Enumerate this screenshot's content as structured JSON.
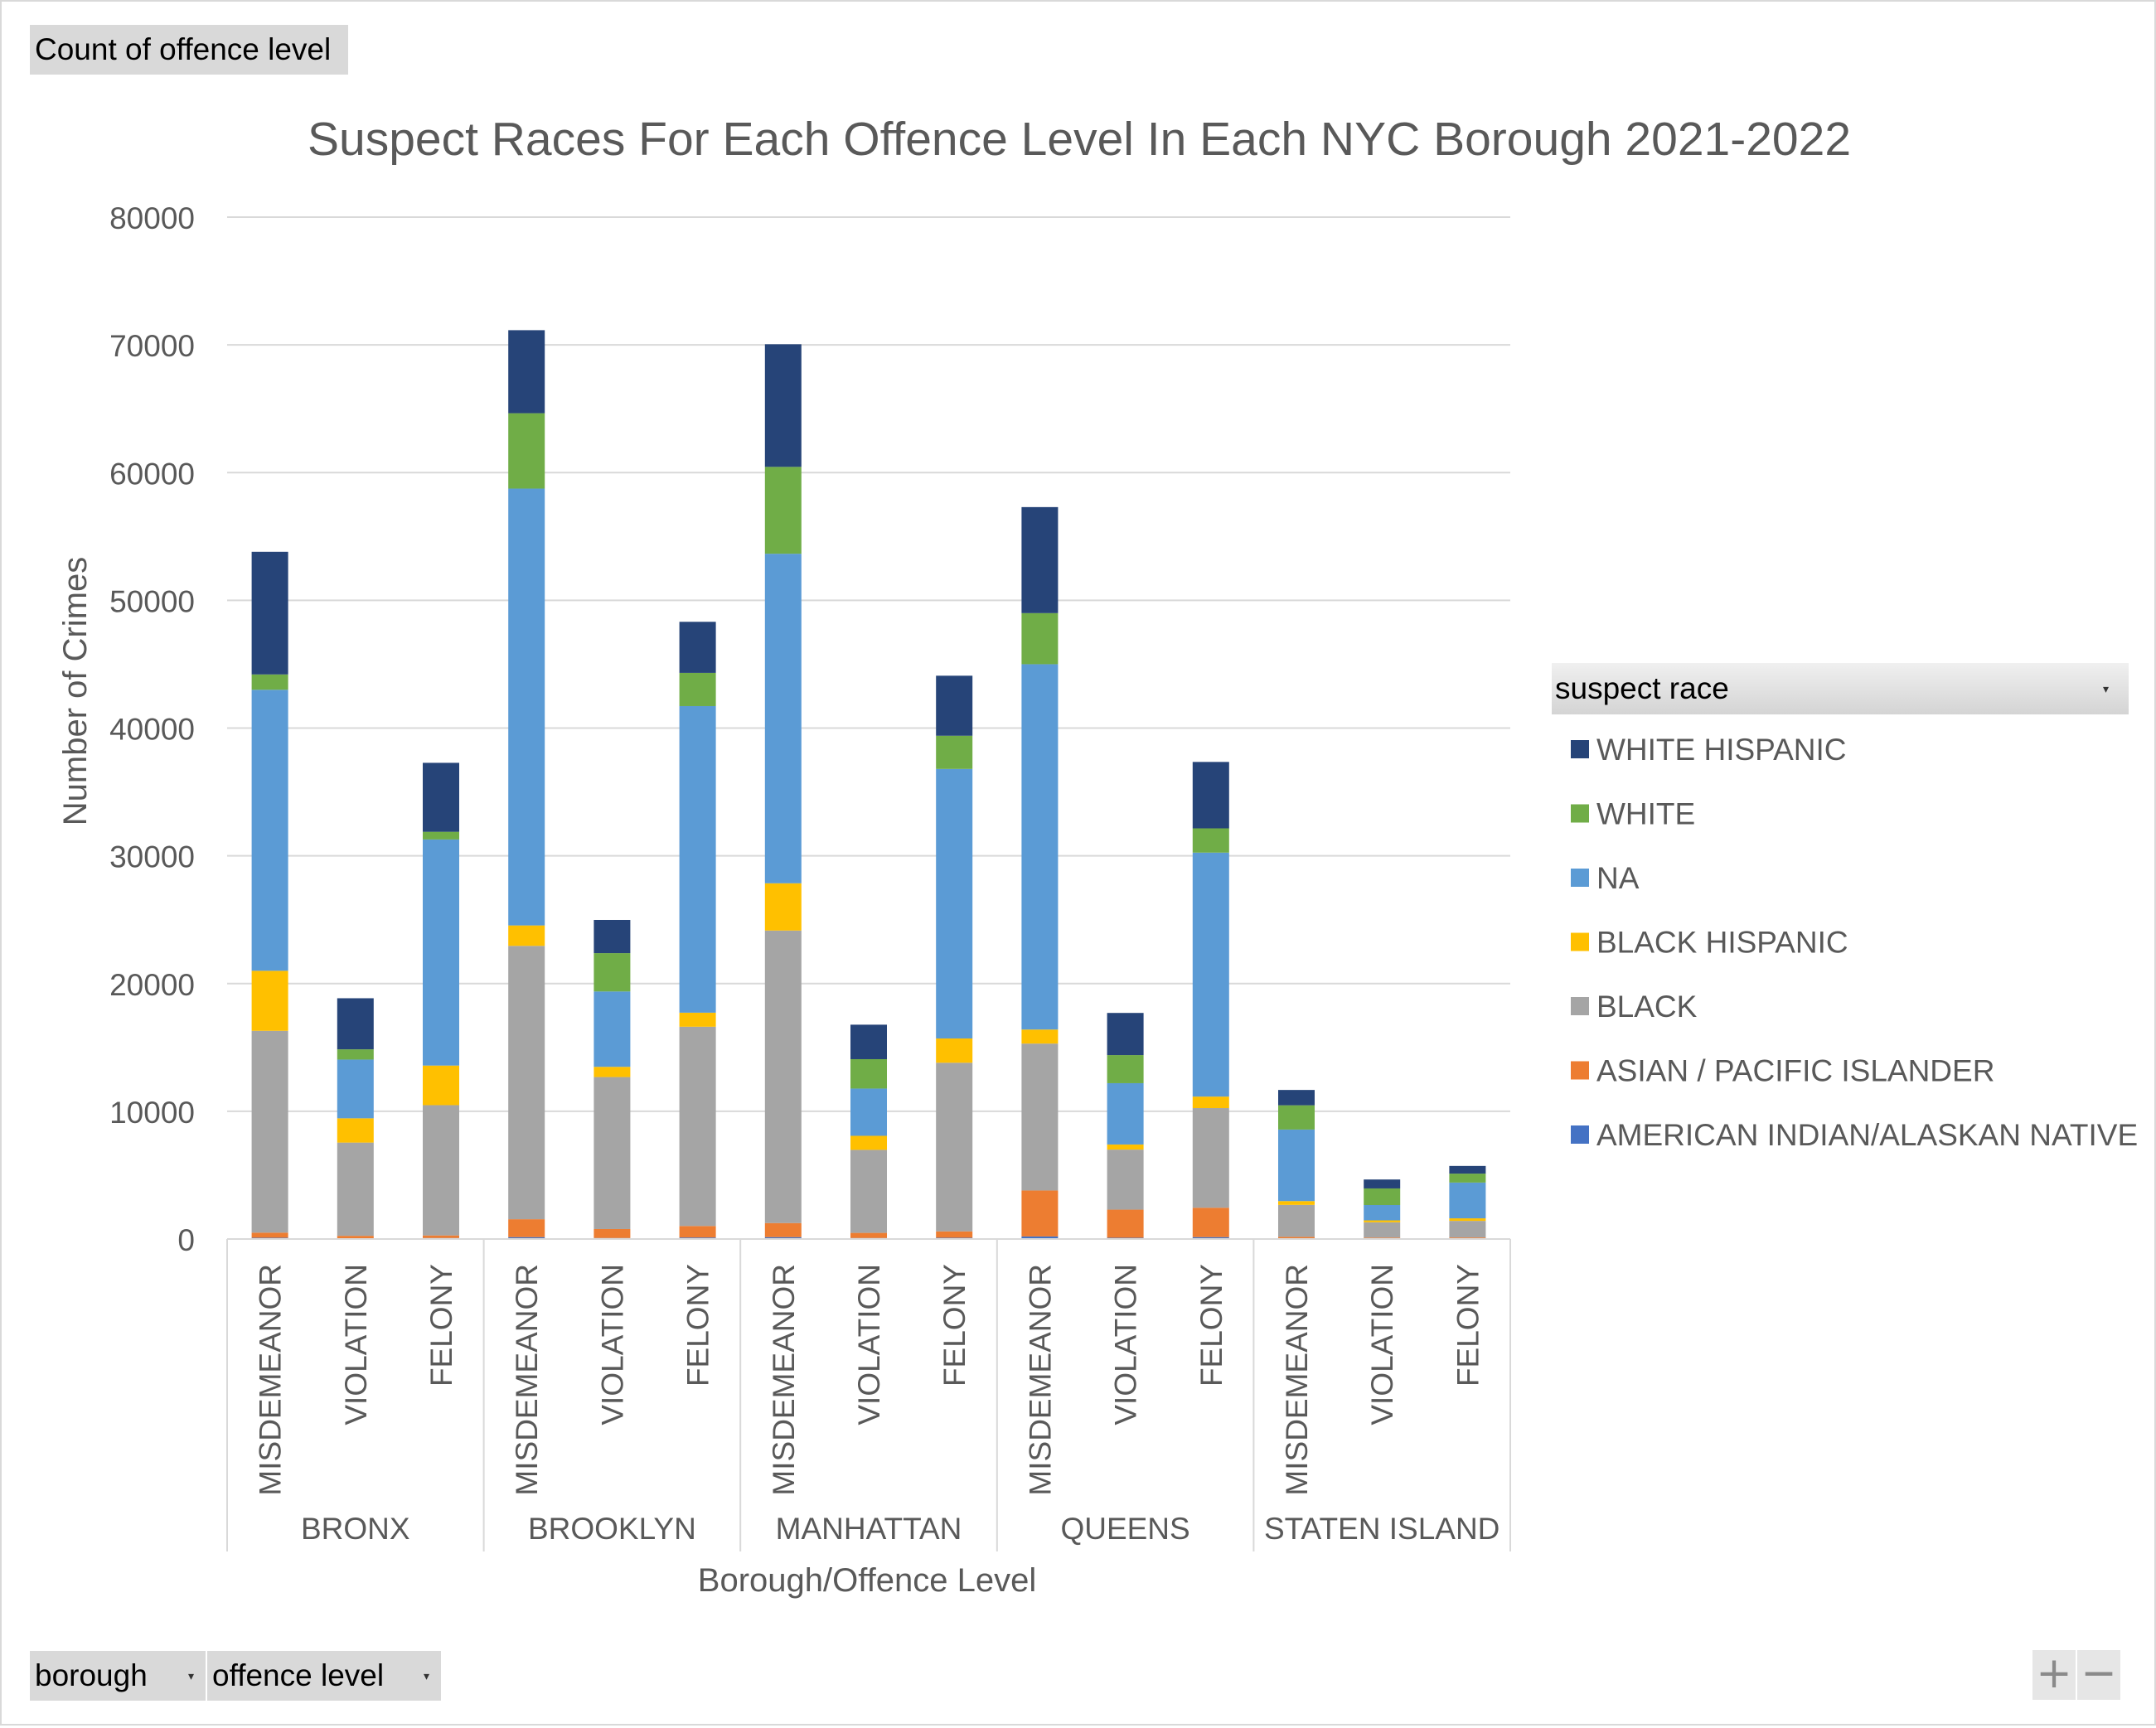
{
  "pivot": {
    "values_field": "Count of offence level",
    "legend_field": "suspect race",
    "row_fields": [
      "borough",
      "offence level"
    ],
    "zoom_in": "+",
    "zoom_out": "−"
  },
  "chart_data": {
    "type": "bar",
    "stacked": true,
    "title": "Suspect Races For Each Offence Level In Each NYC Borough 2021-2022",
    "xlabel": "Borough/Offence Level",
    "ylabel": "Number of Crimes",
    "ylim": [
      0,
      80000
    ],
    "yticks": [
      0,
      10000,
      20000,
      30000,
      40000,
      50000,
      60000,
      70000,
      80000
    ],
    "grid": true,
    "legend_position": "right",
    "groups": [
      {
        "name": "BRONX",
        "categories": [
          "MISDEMEANOR",
          "VIOLATION",
          "FELONY"
        ]
      },
      {
        "name": "BROOKLYN",
        "categories": [
          "MISDEMEANOR",
          "VIOLATION",
          "FELONY"
        ]
      },
      {
        "name": "MANHATTAN",
        "categories": [
          "MISDEMEANOR",
          "VIOLATION",
          "FELONY"
        ]
      },
      {
        "name": "QUEENS",
        "categories": [
          "MISDEMEANOR",
          "VIOLATION",
          "FELONY"
        ]
      },
      {
        "name": "STATEN ISLAND",
        "categories": [
          "MISDEMEANOR",
          "VIOLATION",
          "FELONY"
        ]
      }
    ],
    "series": [
      {
        "name": "AMERICAN INDIAN/ALASKAN NATIVE",
        "color": "#4472c4",
        "values": [
          100,
          50,
          80,
          150,
          80,
          120,
          150,
          80,
          100,
          200,
          100,
          150,
          20,
          10,
          20
        ]
      },
      {
        "name": "ASIAN / PACIFIC ISLANDER",
        "color": "#ed7d31",
        "values": [
          400,
          200,
          200,
          1400,
          700,
          900,
          1100,
          400,
          500,
          3600,
          2200,
          2300,
          150,
          100,
          100
        ]
      },
      {
        "name": "BLACK",
        "color": "#a5a5a5",
        "values": [
          15800,
          7300,
          10200,
          21400,
          11900,
          15600,
          22900,
          6500,
          13200,
          11500,
          4700,
          7800,
          2500,
          1200,
          1300
        ]
      },
      {
        "name": "BLACK HISPANIC",
        "color": "#ffc000",
        "values": [
          4700,
          1900,
          3100,
          1600,
          800,
          1100,
          3700,
          1100,
          1900,
          1100,
          400,
          900,
          300,
          150,
          200
        ]
      },
      {
        "name": "NA",
        "color": "#5b9bd5",
        "values": [
          22000,
          4600,
          17700,
          34200,
          5900,
          24000,
          25800,
          3700,
          21100,
          28600,
          4800,
          19100,
          5600,
          1200,
          2800
        ]
      },
      {
        "name": "WHITE",
        "color": "#70ad47",
        "values": [
          1200,
          800,
          600,
          5900,
          3000,
          2600,
          6800,
          2300,
          2600,
          4000,
          2200,
          1900,
          1900,
          1300,
          700
        ]
      },
      {
        "name": "WHITE HISPANIC",
        "color": "#264478",
        "values": [
          9600,
          4000,
          5400,
          6500,
          2600,
          4000,
          9600,
          2700,
          4700,
          8300,
          3300,
          5200,
          1200,
          700,
          600
        ]
      }
    ]
  }
}
